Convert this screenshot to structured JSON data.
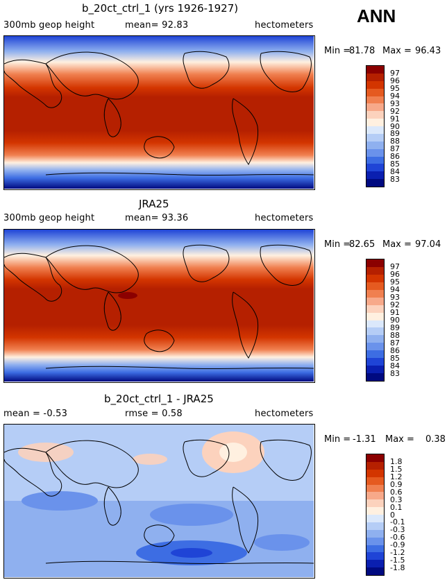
{
  "annual_label": "ANN",
  "panels": [
    {
      "title": "b_20ct_ctrl_1 (yrs 1926-1927)",
      "left_label": "300mb  geop height",
      "center_label": "mean=  92.83",
      "units": "hectometers",
      "min_label": "Min =",
      "min_value": "81.78",
      "max_label": "Max =",
      "max_value": "96.43",
      "colorbar_labels": [
        "97",
        "96",
        "95",
        "94",
        "93",
        "92",
        "91",
        "90",
        "89",
        "88",
        "87",
        "86",
        "85",
        "84",
        "83"
      ]
    },
    {
      "title": "JRA25",
      "left_label": "300mb  geop height",
      "center_label": "mean=  93.36",
      "units": "hectometers",
      "min_label": "Min =",
      "min_value": "82.65",
      "max_label": "Max =",
      "max_value": "97.04",
      "colorbar_labels": [
        "97",
        "96",
        "95",
        "94",
        "93",
        "92",
        "91",
        "90",
        "89",
        "88",
        "87",
        "86",
        "85",
        "84",
        "83"
      ]
    },
    {
      "title": "b_20ct_ctrl_1 - JRA25",
      "left_label": "mean =   -0.53",
      "center_label": "rmse =   0.58",
      "units": "hectometers",
      "min_label": "Min =",
      "min_value": "-1.31",
      "max_label": "Max =",
      "max_value": "0.38",
      "colorbar_labels": [
        "1.8",
        "1.5",
        "1.2",
        "0.9",
        "0.6",
        "0.3",
        "0.1",
        "0",
        "-0.1",
        "-0.3",
        "-0.6",
        "-0.9",
        "-1.2",
        "-1.5",
        "-1.8"
      ]
    }
  ],
  "colors": {
    "scale": [
      "#8b0000",
      "#b52000",
      "#d33500",
      "#e55a20",
      "#f08050",
      "#f7a98a",
      "#fcd2bd",
      "#fff0e0",
      "#dbe8fb",
      "#b5cdf6",
      "#8fb0ef",
      "#6a92eb",
      "#3d6de3",
      "#1f44d6",
      "#0a1fb0",
      "#000a80"
    ]
  },
  "chart_data": [
    {
      "type": "heatmap",
      "title": "b_20ct_ctrl_1 (yrs 1926-1927)",
      "variable": "300mb geop height",
      "units": "hectometers",
      "mean": 92.83,
      "min": 81.78,
      "max": 96.43,
      "contour_levels": [
        83,
        84,
        85,
        86,
        87,
        88,
        89,
        90,
        91,
        92,
        93,
        94,
        95,
        96,
        97
      ]
    },
    {
      "type": "heatmap",
      "title": "JRA25",
      "variable": "300mb geop height",
      "units": "hectometers",
      "mean": 93.36,
      "min": 82.65,
      "max": 97.04,
      "contour_levels": [
        83,
        84,
        85,
        86,
        87,
        88,
        89,
        90,
        91,
        92,
        93,
        94,
        95,
        96,
        97
      ]
    },
    {
      "type": "heatmap",
      "title": "b_20ct_ctrl_1 - JRA25",
      "units": "hectometers",
      "mean": -0.53,
      "rmse": 0.58,
      "min": -1.31,
      "max": 0.38,
      "contour_levels": [
        -1.8,
        -1.5,
        -1.2,
        -0.9,
        -0.6,
        -0.3,
        -0.1,
        0,
        0.1,
        0.3,
        0.6,
        0.9,
        1.2,
        1.5,
        1.8
      ]
    }
  ]
}
